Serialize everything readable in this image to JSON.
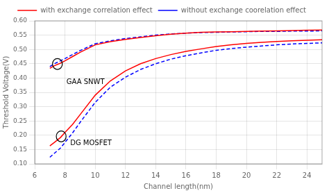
{
  "chart_data": {
    "type": "line",
    "xlabel": "Channel length(nm)",
    "ylabel": "Threshold Voltage(V)",
    "x": [
      7,
      7.3,
      7.7,
      8,
      8.5,
      9,
      10,
      11,
      12,
      13,
      14,
      15,
      16,
      17,
      18,
      19,
      20,
      21,
      22,
      23,
      24,
      25
    ],
    "series": [
      {
        "name": "with exchange correlation effect",
        "color": "red",
        "line_style": "solid",
        "values": [
          0.434,
          0.443,
          0.452,
          0.46,
          0.475,
          0.49,
          0.516,
          0.527,
          0.535,
          0.542,
          0.548,
          0.553,
          0.557,
          0.56,
          0.561,
          0.562,
          0.563,
          0.564,
          0.565,
          0.566,
          0.567,
          0.568
        ]
      },
      {
        "name": "without exchange coorelation effect",
        "color": "blue",
        "line_style": "dashed",
        "values": [
          0.44,
          0.45,
          0.46,
          0.468,
          0.482,
          0.496,
          0.52,
          0.53,
          0.538,
          0.544,
          0.55,
          0.554,
          0.557,
          0.559,
          0.56,
          0.561,
          0.562,
          0.563,
          0.563,
          0.564,
          0.564,
          0.565
        ]
      },
      {
        "name": "with exchange correlation effect",
        "color": "red",
        "line_style": "solid",
        "values": [
          0.163,
          0.175,
          0.192,
          0.21,
          0.238,
          0.272,
          0.34,
          0.39,
          0.425,
          0.45,
          0.468,
          0.482,
          0.493,
          0.502,
          0.51,
          0.516,
          0.521,
          0.525,
          0.528,
          0.53,
          0.532,
          0.534
        ]
      },
      {
        "name": "without exchange coorelation effect",
        "color": "blue",
        "line_style": "dashed",
        "values": [
          0.123,
          0.137,
          0.155,
          0.175,
          0.208,
          0.245,
          0.315,
          0.368,
          0.403,
          0.43,
          0.45,
          0.466,
          0.478,
          0.488,
          0.497,
          0.503,
          0.508,
          0.512,
          0.516,
          0.519,
          0.521,
          0.523
        ]
      }
    ],
    "xlim": [
      6,
      25
    ],
    "ylim": [
      0.1,
      0.6
    ],
    "xticks": [
      6,
      8,
      10,
      12,
      14,
      16,
      18,
      20,
      22,
      24
    ],
    "yticks": [
      {
        "value": 0.1,
        "label": "0.10"
      },
      0.15,
      {
        "value": 0.2,
        "label": "0.20"
      },
      0.25,
      {
        "value": 0.3,
        "label": "0.30"
      },
      0.35,
      {
        "value": 0.4,
        "label": "0.40"
      },
      0.45,
      {
        "value": 0.5,
        "label": "0.50"
      },
      0.55,
      {
        "value": 0.6,
        "label": "0.60"
      }
    ],
    "grid": true,
    "legend": "top",
    "annotations": [
      {
        "text": "GAA SNWT",
        "x": 8.1,
        "y": 0.398,
        "ellipse": {
          "x": 7.5,
          "y": 0.449,
          "width": 0.65,
          "height": 0.038
        }
      },
      {
        "text": "DG MOSFET",
        "x": 8.35,
        "y": 0.183,
        "ellipse": {
          "x": 7.75,
          "y": 0.196,
          "width": 0.65,
          "height": 0.038
        }
      }
    ]
  }
}
